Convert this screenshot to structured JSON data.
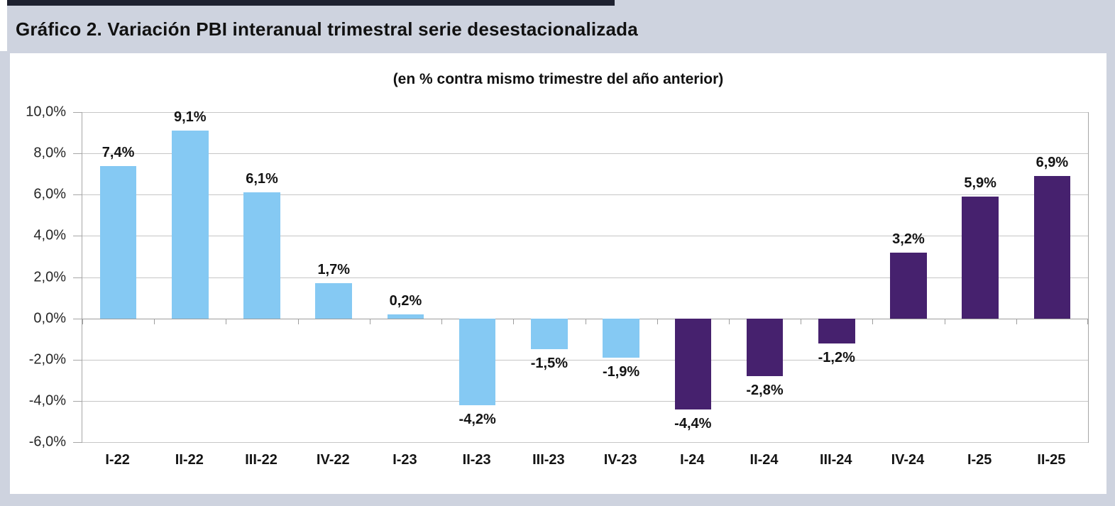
{
  "header": {
    "title": "Gráfico 2. Variación PBI interanual trimestral serie desestacionalizada"
  },
  "chart_data": {
    "type": "bar",
    "title": "Gráfico 2. Variación PBI interanual trimestral serie desestacionalizada",
    "subtitle": "(en % contra mismo trimestre del año anterior)",
    "categories": [
      "I-22",
      "II-22",
      "III-22",
      "IV-22",
      "I-23",
      "II-23",
      "III-23",
      "IV-23",
      "I-24",
      "II-24",
      "III-24",
      "IV-24",
      "I-25",
      "II-25"
    ],
    "values": [
      7.4,
      9.1,
      6.1,
      1.7,
      0.2,
      -4.2,
      -1.5,
      -1.9,
      -4.4,
      -2.8,
      -1.2,
      3.2,
      5.9,
      6.9
    ],
    "value_labels": [
      "7,4%",
      "9,1%",
      "6,1%",
      "1,7%",
      "0,2%",
      "-4,2%",
      "-1,5%",
      "-1,9%",
      "-4,4%",
      "-2,8%",
      "-1,2%",
      "3,2%",
      "5,9%",
      "6,9%"
    ],
    "bar_colors": [
      "#85C9F3",
      "#85C9F3",
      "#85C9F3",
      "#85C9F3",
      "#85C9F3",
      "#85C9F3",
      "#85C9F3",
      "#85C9F3",
      "#46216E",
      "#46216E",
      "#46216E",
      "#46216E",
      "#46216E",
      "#46216E"
    ],
    "ylabel": "",
    "xlabel": "",
    "ylim": [
      -6,
      10
    ],
    "ytick_step": 2,
    "ytick_labels": [
      "10,0%",
      "8,0%",
      "6,0%",
      "4,0%",
      "2,0%",
      "0,0%",
      "-2,0%",
      "-4,0%",
      "-6,0%"
    ],
    "grid": true,
    "legend": false,
    "colors": {
      "bar_2022_2023": "#85C9F3",
      "bar_2024_2025": "#46216E",
      "page_background": "#CED3DF",
      "panel_background": "#FFFFFF",
      "gridline": "#C6C6C6",
      "axis": "#9E9E9E",
      "text": "#141414",
      "top_border": "#1E2130"
    }
  }
}
